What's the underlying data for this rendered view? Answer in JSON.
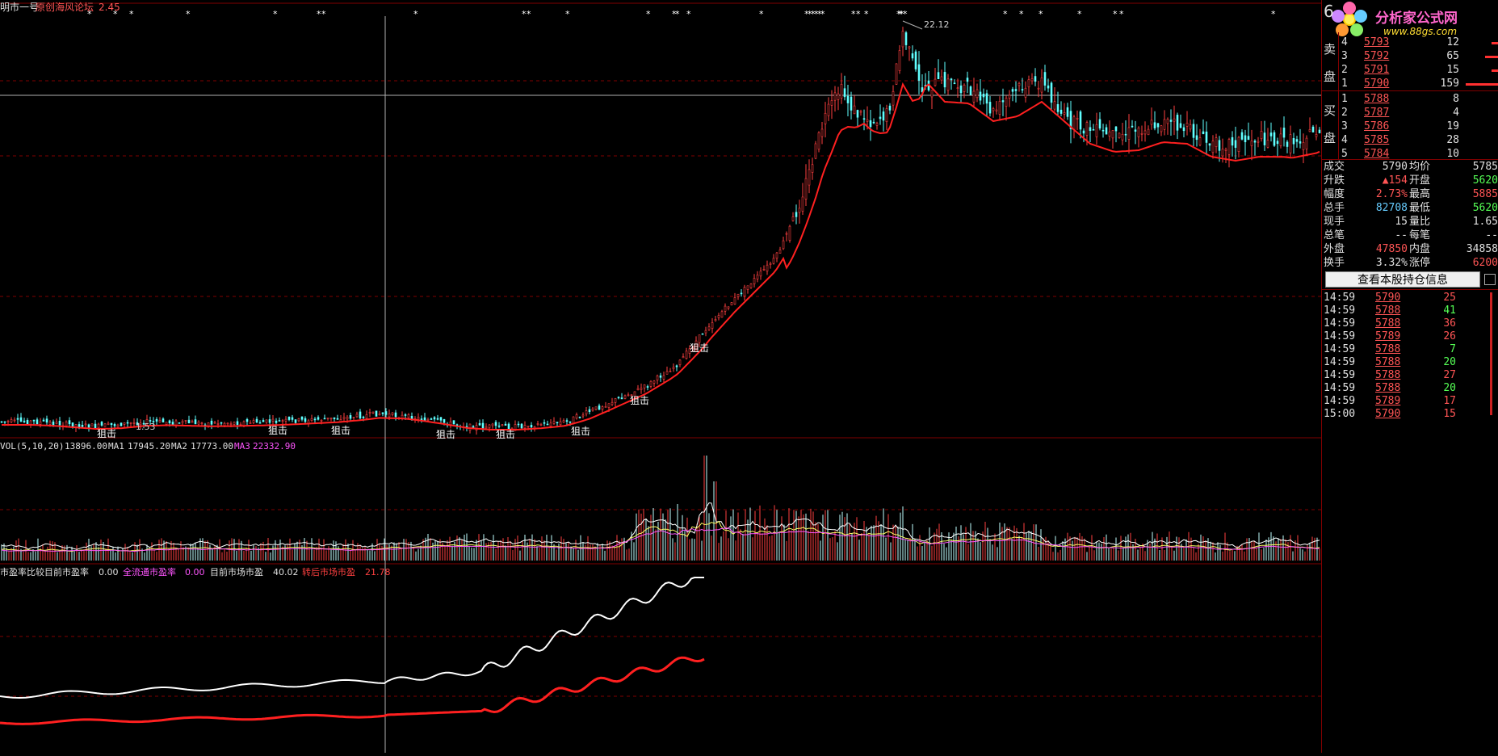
{
  "header": {
    "title": "明市一号",
    "subtitle": "原创海风论坛",
    "value": "2.45"
  },
  "price_panel": {
    "high_label": "22.12",
    "low_label": "1.53",
    "signal_label": "狙击"
  },
  "volume_panel": {
    "title": "VOL(5,10,20)",
    "vol_value": "13896.00",
    "ma1_label": "MA1",
    "ma1_value": "17945.20",
    "ma2_label": "MA2",
    "ma2_value": "17773.00",
    "ma3_label": "MA3",
    "ma3_value": "22332.90"
  },
  "pe_panel": {
    "title": "市盈率比较目前市盈率",
    "pe_value": "0.00",
    "float_pe_label": "全流通市盈率",
    "float_pe_value": "0.00",
    "market_pe_label": "目前市场市盈",
    "market_pe_value": "40.02",
    "adjusted_pe_label": "转后市场市盈",
    "adjusted_pe_value": "21.78"
  },
  "colors": {
    "up": "#ff5555",
    "down": "#55ffff",
    "ma": "#ff2020",
    "grid": "#800000",
    "pe_line": "#ffffff",
    "pe_line2": "#ff2020",
    "magenta": "#ff55ff"
  },
  "side": {
    "logo_title": "分析家公式网",
    "logo_url": "www.88gs.com",
    "top_digit": "6",
    "sell_label_1": "卖",
    "sell_label_2": "盘",
    "buy_label_1": "买",
    "buy_label_2": "盘",
    "sell_orders": [
      {
        "level": "4",
        "price": "5793",
        "volume": "12"
      },
      {
        "level": "3",
        "price": "5792",
        "volume": "65"
      },
      {
        "level": "2",
        "price": "5791",
        "volume": "15"
      },
      {
        "level": "1",
        "price": "5790",
        "volume": "159"
      }
    ],
    "buy_orders": [
      {
        "level": "1",
        "price": "5788",
        "volume": "8"
      },
      {
        "level": "2",
        "price": "5787",
        "volume": "4"
      },
      {
        "level": "3",
        "price": "5786",
        "volume": "19"
      },
      {
        "level": "4",
        "price": "5785",
        "volume": "28"
      },
      {
        "level": "5",
        "price": "5784",
        "volume": "10"
      }
    ],
    "stats": [
      {
        "l1": "成交",
        "v1": "5790",
        "l2": "均价",
        "v2": "5785"
      },
      {
        "l1": "升跌",
        "v1": "▲154",
        "l2": "开盘",
        "v2": "5620"
      },
      {
        "l1": "幅度",
        "v1": "2.73%",
        "l2": "最高",
        "v2": "5885"
      },
      {
        "l1": "总手",
        "v1": "82708",
        "l2": "最低",
        "v2": "5620"
      },
      {
        "l1": "现手",
        "v1": "15",
        "l2": "量比",
        "v2": "1.65"
      },
      {
        "l1": "总笔",
        "v1": "--",
        "l2": "每笔",
        "v2": "--"
      },
      {
        "l1": "外盘",
        "v1": "47850",
        "l2": "内盘",
        "v2": "34858"
      },
      {
        "l1": "换手",
        "v1": "3.32%",
        "l2": "涨停",
        "v2": "6200"
      }
    ],
    "holdings_button": "查看本股持仓信息",
    "ticks": [
      {
        "time": "14:59",
        "price": "5790",
        "volume": "25"
      },
      {
        "time": "14:59",
        "price": "5788",
        "volume": "41"
      },
      {
        "time": "14:59",
        "price": "5788",
        "volume": "36"
      },
      {
        "time": "14:59",
        "price": "5789",
        "volume": "26"
      },
      {
        "time": "14:59",
        "price": "5788",
        "volume": "7"
      },
      {
        "time": "14:59",
        "price": "5788",
        "volume": "20"
      },
      {
        "time": "14:59",
        "price": "5788",
        "volume": "27"
      },
      {
        "time": "14:59",
        "price": "5788",
        "volume": "20"
      },
      {
        "time": "14:59",
        "price": "5789",
        "volume": "17"
      },
      {
        "time": "15:00",
        "price": "5790",
        "volume": "15"
      }
    ]
  }
}
